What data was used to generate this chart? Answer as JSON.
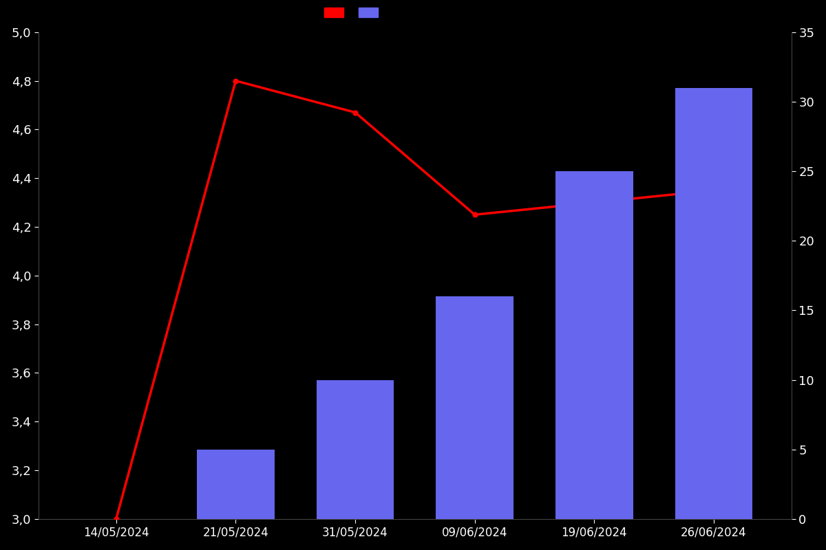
{
  "background_color": "#000000",
  "text_color": "#ffffff",
  "dates": [
    "14/05/2024",
    "21/05/2024",
    "31/05/2024",
    "09/06/2024",
    "19/06/2024",
    "26/06/2024"
  ],
  "bar_dates": [
    "21/05/2024",
    "31/05/2024",
    "09/06/2024",
    "19/06/2024",
    "26/06/2024"
  ],
  "bar_counts": [
    5,
    10,
    16,
    25,
    31
  ],
  "bar_color": "#6666ee",
  "line_dates": [
    "14/05/2024",
    "21/05/2024",
    "31/05/2024",
    "09/06/2024",
    "19/06/2024",
    "26/06/2024"
  ],
  "line_values": [
    3.0,
    4.8,
    4.67,
    4.25,
    4.3,
    4.35
  ],
  "line_color": "#ff0000",
  "line_width": 2.5,
  "marker": "o",
  "marker_size": 5,
  "left_ylim": [
    3.0,
    5.0
  ],
  "left_yticks": [
    3.0,
    3.2,
    3.4,
    3.6,
    3.8,
    4.0,
    4.2,
    4.4,
    4.6,
    4.8,
    5.0
  ],
  "right_ylim": [
    0,
    35
  ],
  "right_yticks": [
    0,
    5,
    10,
    15,
    20,
    25,
    30,
    35
  ],
  "bar_width": 0.65,
  "figsize": [
    12,
    8
  ],
  "dpi": 100
}
